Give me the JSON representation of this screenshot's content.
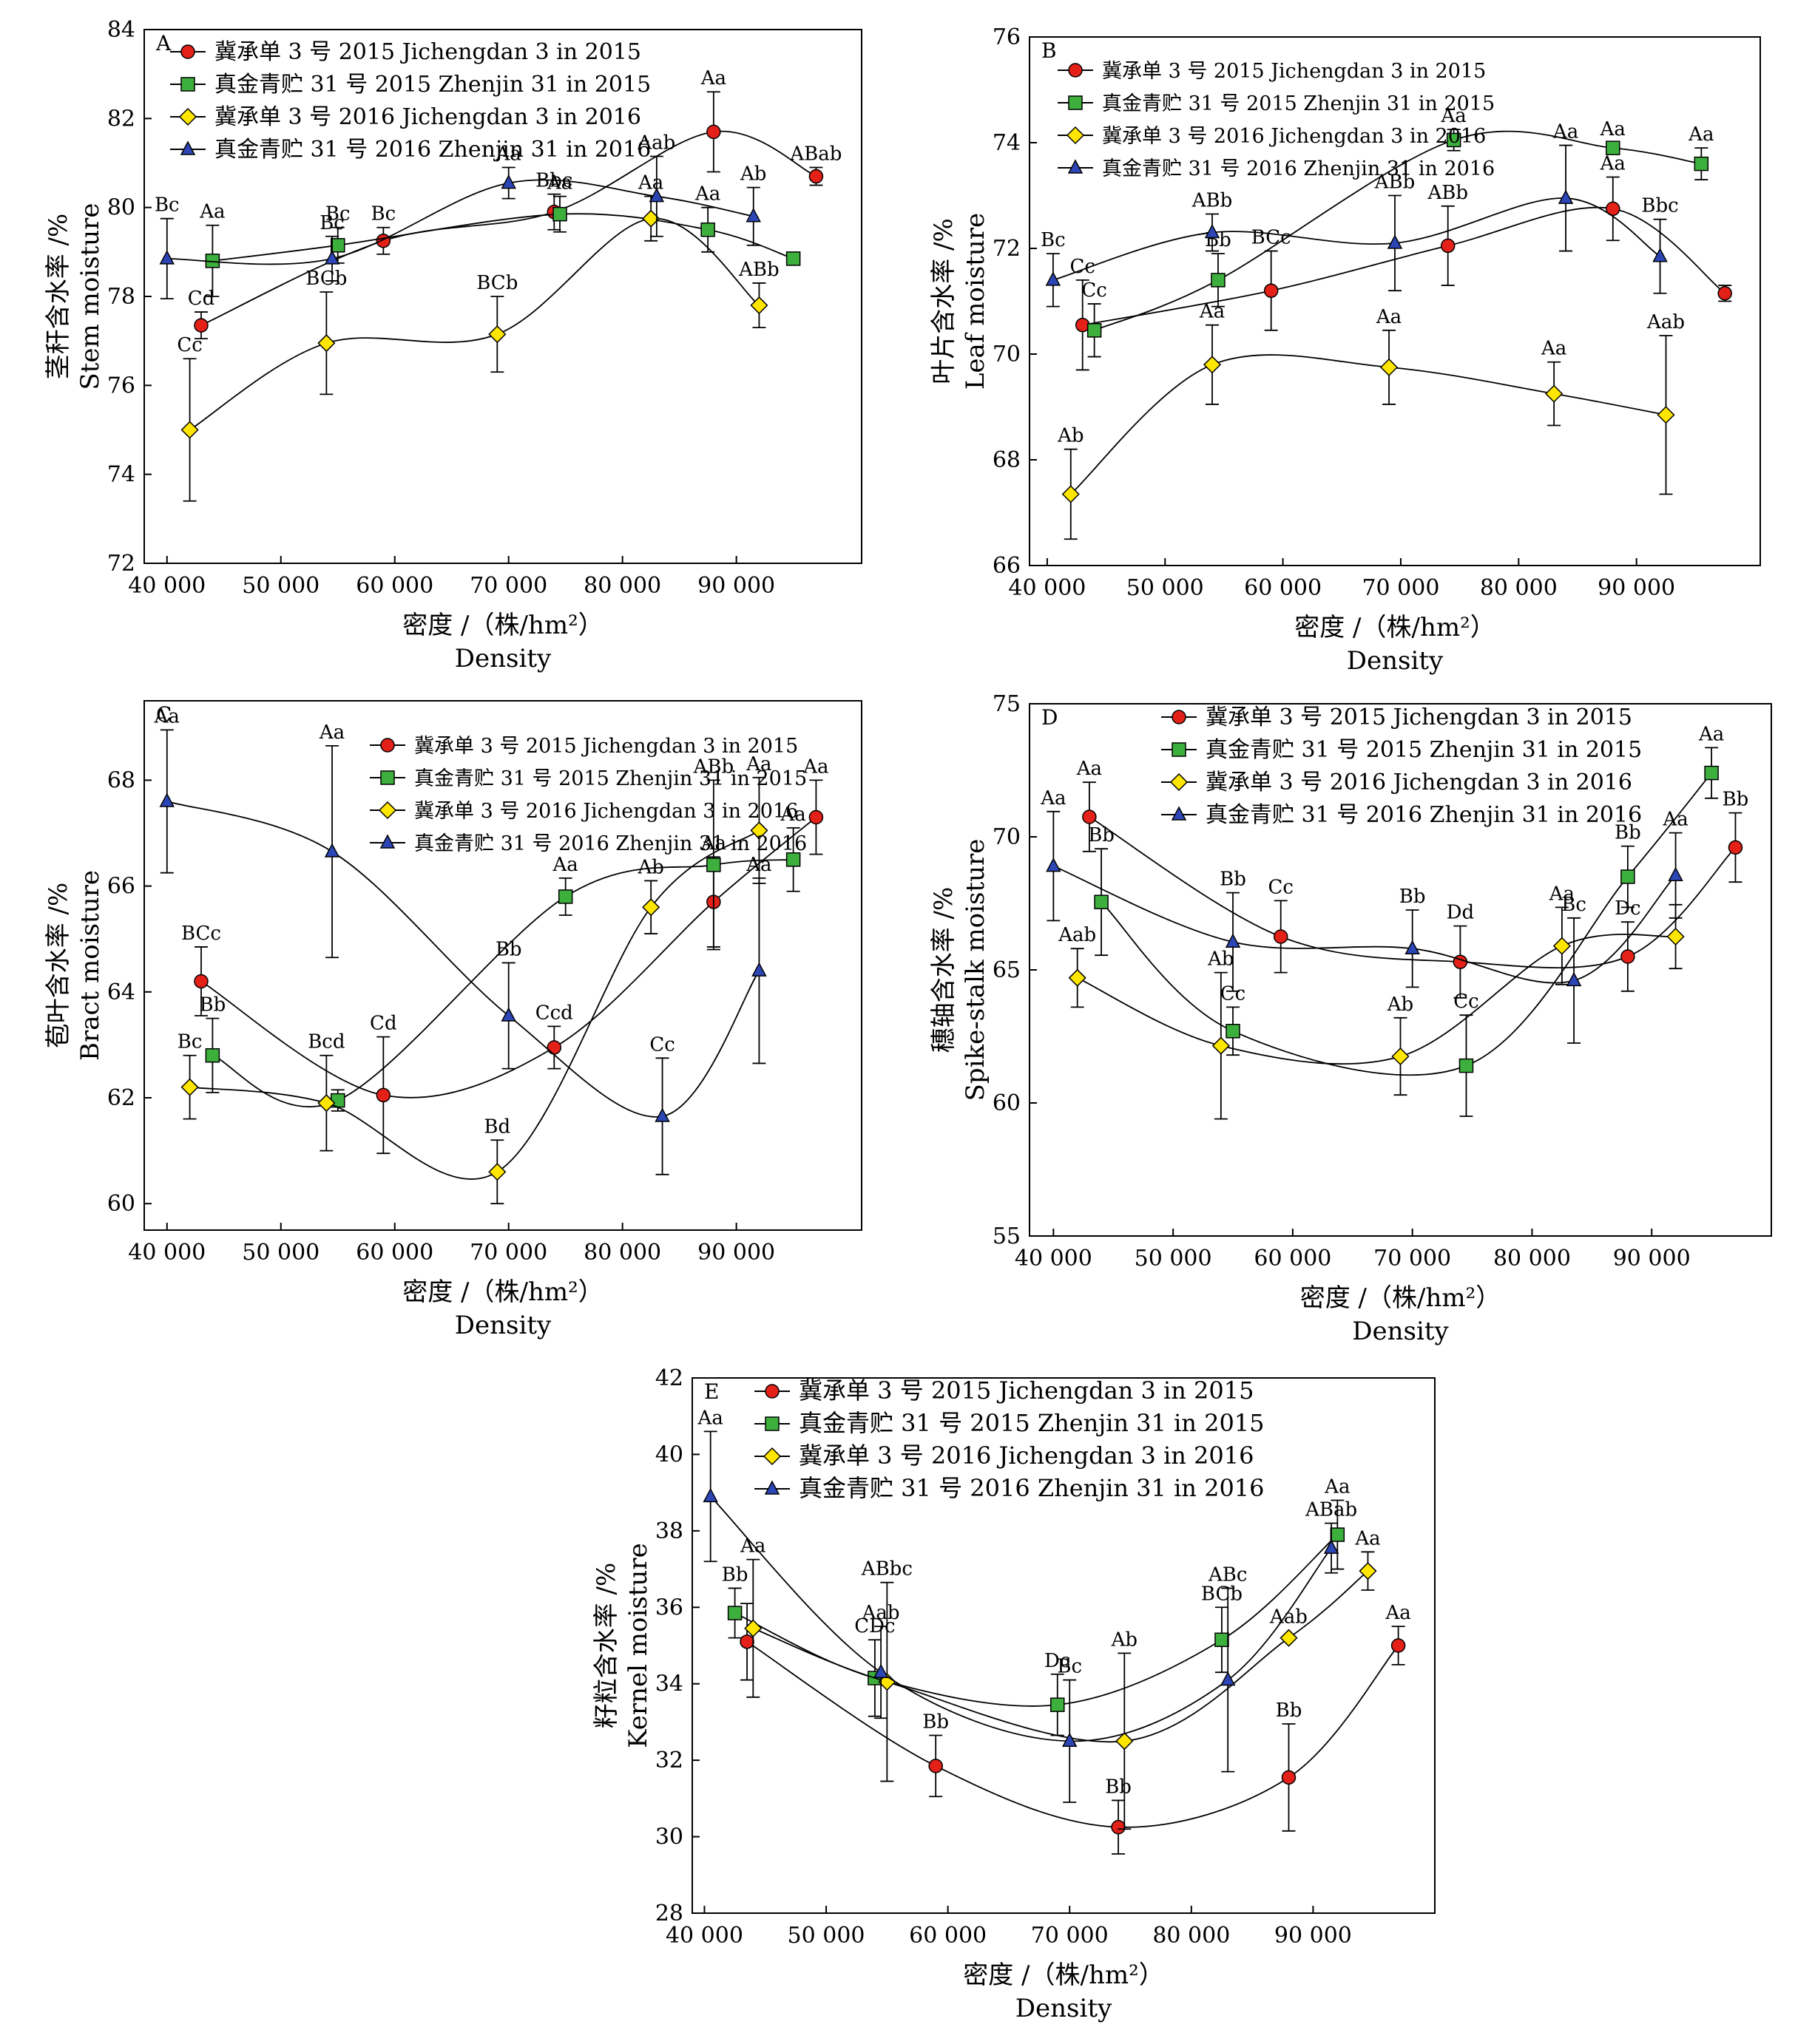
{
  "figure": {
    "x_label_cn": "密度 /（株/hm²）",
    "x_label_en": "Density",
    "legend": [
      "冀承单 3 号 2015 Jichengdan 3 in 2015",
      "真金青贮 31 号 2015 Zhenjin 31 in 2015",
      "冀承单 3 号 2016 Jichengdan 3 in 2016",
      "真金青贮 31 号 2016 Zhenjin 31 in 2016"
    ],
    "x_ticks": [
      "40 000",
      "50 000",
      "60 000",
      "70 000",
      "80 000",
      "90 000"
    ]
  },
  "chart_data": [
    {
      "panel": "A",
      "type": "line",
      "ylabel_cn": "茎秆含水率 /%",
      "ylabel_en": "Stem moisture",
      "xlim": [
        38000,
        101000
      ],
      "ylim": [
        72,
        84
      ],
      "yticks": [
        72,
        74,
        76,
        78,
        80,
        82,
        84
      ],
      "legend_position": "top-left",
      "series": [
        {
          "name": "冀承单 3 号 2015 Jichengdan 3 in 2015",
          "x": [
            43000,
            59000,
            74000,
            88000,
            97000
          ],
          "y": [
            77.35,
            79.25,
            79.9,
            81.7,
            80.7
          ],
          "err": [
            0.3,
            0.3,
            0.4,
            0.9,
            0.2
          ],
          "labels": [
            "Cd",
            "Bc",
            "Bbc",
            "Aa",
            "ABab"
          ]
        },
        {
          "name": "真金青贮 31 号 2015 Zhenjin 31 in 2015",
          "x": [
            44000,
            55000,
            74500,
            87500,
            95000
          ],
          "y": [
            78.8,
            79.15,
            79.85,
            79.5,
            78.85
          ],
          "err": [
            0.8,
            0.4,
            0.4,
            0.5,
            0.1
          ],
          "labels": [
            "Aa",
            "Bc",
            "Aa",
            "Aa",
            ""
          ]
        },
        {
          "name": "冀承单 3 号 2016 Jichengdan 3 in 2016",
          "x": [
            42000,
            54000,
            69000,
            82500,
            92000
          ],
          "y": [
            75.0,
            76.95,
            77.15,
            79.75,
            77.8
          ],
          "err": [
            1.6,
            1.15,
            0.85,
            0.5,
            0.5
          ],
          "labels": [
            "Cc",
            "BCb",
            "BCb",
            "Aa",
            "ABb"
          ]
        },
        {
          "name": "真金青贮 31 号 2016 Zhenjin 31 in 2016",
          "x": [
            40000,
            54500,
            70000,
            83000,
            91500
          ],
          "y": [
            78.85,
            78.85,
            80.55,
            80.25,
            79.8
          ],
          "err": [
            0.9,
            0.5,
            0.35,
            0.9,
            0.65
          ],
          "labels": [
            "Bc",
            "Bc",
            "Aa",
            "Aab",
            "Ab"
          ]
        }
      ]
    },
    {
      "panel": "B",
      "type": "line",
      "ylabel_cn": "叶片含水率 /%",
      "ylabel_en": "Leaf moisture",
      "xlim": [
        38500,
        100500
      ],
      "ylim": [
        66,
        76
      ],
      "yticks": [
        66,
        68,
        70,
        72,
        74,
        76
      ],
      "legend_position": "top-left",
      "series": [
        {
          "name": "冀承单 3 号 2015 Jichengdan 3 in 2015",
          "x": [
            43000,
            59000,
            74000,
            88000,
            97500
          ],
          "y": [
            70.55,
            71.2,
            72.05,
            72.75,
            71.15
          ],
          "err": [
            0.85,
            0.75,
            0.75,
            0.6,
            0.15
          ],
          "labels": [
            "Cc",
            "BCc",
            "ABb",
            "Aa",
            ""
          ]
        },
        {
          "name": "真金青贮 31 号 2015 Zhenjin 31 in 2015",
          "x": [
            44000,
            54500,
            74500,
            88000,
            95500
          ],
          "y": [
            70.45,
            71.4,
            74.05,
            73.9,
            73.6
          ],
          "err": [
            0.5,
            0.5,
            0.2,
            0.1,
            0.3
          ],
          "labels": [
            "Cc",
            "Bb",
            "Aa",
            "Aa",
            "Aa"
          ]
        },
        {
          "name": "冀承单 3 号 2016 Jichengdan 3 in 2016",
          "x": [
            42000,
            54000,
            69000,
            83000,
            92500
          ],
          "y": [
            67.35,
            69.8,
            69.75,
            69.25,
            68.85
          ],
          "err": [
            0.85,
            0.75,
            0.7,
            0.6,
            1.5
          ],
          "labels": [
            "Ab",
            "Aa",
            "Aa",
            "Aa",
            "Aab"
          ]
        },
        {
          "name": "真金青贮 31 号 2016 Zhenjin 31 in 2016",
          "x": [
            40500,
            54000,
            69500,
            84000,
            92000
          ],
          "y": [
            71.4,
            72.3,
            72.1,
            72.95,
            71.85
          ],
          "err": [
            0.5,
            0.35,
            0.9,
            1.0,
            0.7
          ],
          "labels": [
            "Bc",
            "ABb",
            "ABb",
            "Aa",
            "Bbc"
          ]
        }
      ]
    },
    {
      "panel": "C",
      "type": "line",
      "ylabel_cn": "苞叶含水率 /%",
      "ylabel_en": "Bract moisture",
      "xlim": [
        38000,
        101000
      ],
      "ylim": [
        59.5,
        69.5
      ],
      "yticks": [
        60,
        62,
        64,
        66,
        68
      ],
      "legend_position": "top-right",
      "series": [
        {
          "name": "冀承单 3 号 2015 Jichengdan 3 in 2015",
          "x": [
            43000,
            59000,
            74000,
            88000,
            97000
          ],
          "y": [
            64.2,
            62.05,
            62.95,
            65.7,
            67.3
          ],
          "err": [
            0.65,
            1.1,
            0.4,
            0.85,
            0.7
          ],
          "labels": [
            "BCc",
            "Cd",
            "Ccd",
            "Aa",
            "Aa"
          ]
        },
        {
          "name": "真金青贮 31 号 2015 Zhenjin 31 in 2015",
          "x": [
            44000,
            55000,
            75000,
            88000,
            95000
          ],
          "y": [
            62.8,
            61.95,
            65.8,
            66.4,
            66.5
          ],
          "err": [
            0.7,
            0.2,
            0.35,
            1.6,
            0.6
          ],
          "labels": [
            "Bb",
            "",
            "Aa",
            "ABb",
            "Aa"
          ]
        },
        {
          "name": "冀承单 3 号 2016 Jichengdan 3 in 2016",
          "x": [
            42000,
            54000,
            69000,
            82500,
            92000
          ],
          "y": [
            62.2,
            61.9,
            60.6,
            65.6,
            67.05
          ],
          "err": [
            0.6,
            0.9,
            0.6,
            0.5,
            1.0
          ],
          "labels": [
            "Bc",
            "Bcd",
            "Bd",
            "Ab",
            "Aa"
          ]
        },
        {
          "name": "真金青贮 31 号 2016 Zhenjin 31 in 2016",
          "x": [
            40000,
            54500,
            70000,
            83500,
            92000
          ],
          "y": [
            67.6,
            66.65,
            63.55,
            61.65,
            64.4
          ],
          "err": [
            1.35,
            2.0,
            1.0,
            1.1,
            1.75
          ],
          "labels": [
            "Aa",
            "Aa",
            "Bb",
            "Cc",
            "Aa"
          ]
        }
      ]
    },
    {
      "panel": "D",
      "type": "line",
      "ylabel_cn": "穗轴含水率 /%",
      "ylabel_en": "Spike-stalk moisture",
      "xlim": [
        38000,
        100000
      ],
      "ylim": [
        55,
        75
      ],
      "yticks": [
        55,
        60,
        65,
        70,
        75
      ],
      "legend_position": "top",
      "series": [
        {
          "name": "冀承单 3 号 2015 Jichengdan 3 in 2015",
          "x": [
            43000,
            59000,
            74000,
            88000,
            97000
          ],
          "y": [
            70.75,
            66.25,
            65.3,
            65.5,
            69.6
          ],
          "err": [
            1.3,
            1.35,
            1.35,
            1.3,
            1.3
          ],
          "labels": [
            "Aa",
            "Cc",
            "Dd",
            "Dc",
            "Bb"
          ]
        },
        {
          "name": "真金青贮 31 号 2015 Zhenjin 31 in 2015",
          "x": [
            44000,
            55000,
            74500,
            88000,
            95000
          ],
          "y": [
            67.55,
            62.7,
            61.4,
            68.5,
            72.4
          ],
          "err": [
            2.0,
            0.9,
            1.9,
            1.15,
            0.95
          ],
          "labels": [
            "Bb",
            "Cc",
            "Cc",
            "Bb",
            "Aa"
          ]
        },
        {
          "name": "冀承单 3 号 2016 Jichengdan 3 in 2016",
          "x": [
            42000,
            54000,
            69000,
            82500,
            92000
          ],
          "y": [
            64.7,
            62.15,
            61.75,
            65.9,
            66.25
          ],
          "err": [
            1.1,
            2.75,
            1.45,
            1.45,
            1.2
          ],
          "labels": [
            "Aab",
            "Ab",
            "Ab",
            "Aa",
            ""
          ]
        },
        {
          "name": "真金青贮 31 号 2016 Zhenjin 31 in 2016",
          "x": [
            40000,
            55000,
            70000,
            83500,
            92000
          ],
          "y": [
            68.9,
            66.05,
            65.8,
            64.6,
            68.55
          ],
          "err": [
            2.05,
            1.85,
            1.45,
            2.35,
            1.6
          ],
          "labels": [
            "Aa",
            "Bb",
            "Bb",
            "Bc",
            "Aa"
          ]
        }
      ]
    },
    {
      "panel": "E",
      "type": "line",
      "ylabel_cn": "籽粒含水率 /%",
      "ylabel_en": "Kernel moisture",
      "xlim": [
        39000,
        100000
      ],
      "ylim": [
        28,
        42
      ],
      "yticks": [
        28,
        30,
        32,
        34,
        36,
        38,
        40,
        42
      ],
      "legend_position": "top",
      "series": [
        {
          "name": "冀承单 3 号 2015 Jichengdan 3 in 2015",
          "x": [
            43500,
            59000,
            74000,
            88000,
            97000
          ],
          "y": [
            35.1,
            31.85,
            30.25,
            31.55,
            35.0
          ],
          "err": [
            1.0,
            0.8,
            0.7,
            1.4,
            0.5
          ],
          "labels": [
            "",
            "Bb",
            "Bb",
            "Bb",
            "Aa"
          ]
        },
        {
          "name": "真金青贮 31 号 2015 Zhenjin 31 in 2015",
          "x": [
            42500,
            54000,
            69000,
            82500,
            92000
          ],
          "y": [
            35.85,
            34.15,
            33.45,
            35.15,
            37.9
          ],
          "err": [
            0.65,
            1.0,
            0.8,
            0.85,
            0.9
          ],
          "labels": [
            "Bb",
            "CDc",
            "Dc",
            "BCb",
            "Aa"
          ]
        },
        {
          "name": "冀承单 3 号 2016 Jichengdan 3 in 2016",
          "x": [
            44000,
            55000,
            74500,
            88000,
            94500
          ],
          "y": [
            35.45,
            34.05,
            32.5,
            35.2,
            36.95
          ],
          "err": [
            1.8,
            2.6,
            2.3,
            0.0,
            0.5
          ],
          "labels": [
            "Aa",
            "ABbc",
            "Ab",
            "Aab",
            "Aa"
          ]
        },
        {
          "name": "真金青贮 31 号 2016 Zhenjin 31 in 2016",
          "x": [
            40500,
            54500,
            70000,
            83000,
            91500
          ],
          "y": [
            38.9,
            34.3,
            32.5,
            34.1,
            37.55
          ],
          "err": [
            1.7,
            1.2,
            1.6,
            2.4,
            0.65
          ],
          "labels": [
            "Aa",
            "Aab",
            "Bc",
            "ABc",
            "ABab"
          ]
        }
      ]
    }
  ]
}
